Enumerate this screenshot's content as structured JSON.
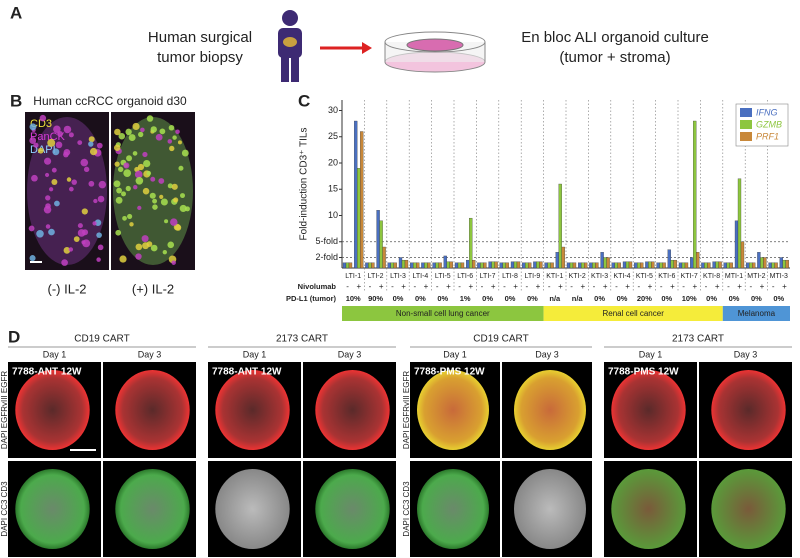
{
  "panel_a": {
    "label": "A",
    "left_text": [
      "Human surgical",
      "tumor biopsy"
    ],
    "right_text": [
      "En bloc ALI organoid culture",
      "(tumor + stroma)"
    ]
  },
  "panel_b": {
    "label": "B",
    "title": "Human ccRCC organoid d30",
    "stains": [
      {
        "name": "CD3",
        "color": "#f2e43a"
      },
      {
        "name": "PanCK",
        "color": "#d63bd6"
      },
      {
        "name": "DAPI",
        "color": "#8fd0ff"
      }
    ],
    "conditions": [
      "(-) IL-2",
      "(+) IL-2"
    ]
  },
  "chart_data": {
    "type": "bar",
    "label": "C",
    "y_label": "Fold-induction CD3⁺ TILs",
    "row_labels": [
      "Nivolumab",
      "PD-L1 (tumor)"
    ],
    "categories": [
      "-",
      "+",
      "-",
      "+",
      "-",
      "+",
      "-",
      "+",
      "-",
      "+",
      "-",
      "+",
      "-",
      "+",
      "-",
      "+",
      "-",
      "+",
      "-",
      "+",
      "-",
      "+",
      "-",
      "+",
      "-",
      "+",
      "-",
      "+",
      "-",
      "+",
      "-",
      "+",
      "-",
      "+",
      "-",
      "+",
      "-",
      "+",
      "-",
      "+"
    ],
    "groups": [
      {
        "name": "Non-small cell lung cancer",
        "color": "#8cc63f",
        "samples": [
          {
            "name": "LTI-1",
            "pdl1": "10%"
          },
          {
            "name": "LTI-2",
            "pdl1": "90%"
          },
          {
            "name": "LTI-3",
            "pdl1": "0%"
          },
          {
            "name": "LTI-4",
            "pdl1": "0%"
          },
          {
            "name": "LTI-5",
            "pdl1": "0%"
          },
          {
            "name": "LTI-6",
            "pdl1": "1%"
          },
          {
            "name": "LTI-7",
            "pdl1": "0%"
          },
          {
            "name": "LTI-8",
            "pdl1": "0%"
          },
          {
            "name": "LTI-9",
            "pdl1": "0%"
          }
        ]
      },
      {
        "name": "Renal cell cancer",
        "color": "#f5ec3a",
        "samples": [
          {
            "name": "KTI-1",
            "pdl1": "n/a"
          },
          {
            "name": "KTI-2",
            "pdl1": "n/a"
          },
          {
            "name": "KTI-3",
            "pdl1": "0%"
          },
          {
            "name": "KTI-4",
            "pdl1": "0%"
          },
          {
            "name": "KTI-5",
            "pdl1": "20%"
          },
          {
            "name": "KTI-6",
            "pdl1": "0%"
          },
          {
            "name": "KTI-7",
            "pdl1": "10%"
          },
          {
            "name": "KTI-8",
            "pdl1": "0%"
          }
        ]
      },
      {
        "name": "Melanoma",
        "color": "#4f95d6",
        "samples": [
          {
            "name": "MTI-1",
            "pdl1": "0%"
          },
          {
            "name": "MTI-2",
            "pdl1": "0%"
          },
          {
            "name": "MTI-3",
            "pdl1": "0%"
          }
        ]
      }
    ],
    "series": [
      {
        "name": "IFNG",
        "color": "#4a6fc0",
        "values": [
          1,
          28,
          1,
          11,
          1,
          2,
          1,
          1,
          1,
          2.3,
          1,
          1.5,
          1,
          1.2,
          1,
          1.2,
          1,
          1.2,
          1,
          3,
          1,
          1,
          1,
          3,
          1,
          1.2,
          1,
          1.2,
          1,
          3.5,
          1,
          2,
          1,
          1.2,
          1,
          9,
          1,
          3,
          1,
          2
        ]
      },
      {
        "name": "GZMB",
        "color": "#8dc63f",
        "values": [
          1,
          19,
          1,
          9,
          1,
          1.5,
          1,
          1,
          1,
          1.2,
          1,
          9.5,
          1,
          1.2,
          1,
          1.2,
          1,
          1.2,
          1,
          16,
          1,
          1,
          1,
          2,
          1,
          1.2,
          1,
          1.2,
          1,
          1.5,
          1,
          28,
          1,
          1.2,
          1,
          17,
          1,
          2,
          1,
          1.5
        ]
      },
      {
        "name": "PRF1",
        "color": "#c8883a",
        "values": [
          1,
          26,
          1,
          4,
          1,
          1.5,
          1,
          1,
          1,
          1.2,
          1,
          1.5,
          1,
          1.2,
          1,
          1.2,
          1,
          1.2,
          1,
          4,
          1,
          1,
          1,
          2,
          1,
          1.2,
          1,
          1.2,
          1,
          1.5,
          1,
          3,
          1,
          1.2,
          1,
          5,
          1,
          2,
          1,
          1.5
        ]
      }
    ],
    "ylim": [
      0,
      32
    ],
    "yticks": [
      {
        "value": 2,
        "label": "2-fold"
      },
      {
        "value": 5,
        "label": "5-fold"
      },
      10,
      15,
      20,
      25,
      30
    ]
  },
  "panel_d": {
    "label": "D",
    "blocks": [
      {
        "title": "CD19 CART",
        "days": [
          "Day 1",
          "Day 3"
        ],
        "sample": "7788-ANT 12W",
        "side_labels": [
          "DAPI EGFRvIII EGFR",
          "DAPI CC3 CD3"
        ]
      },
      {
        "title": "2173 CART",
        "days": [
          "Day 1",
          "Day 3"
        ],
        "sample": "7788-ANT 12W"
      },
      {
        "title": "CD19 CART",
        "days": [
          "Day 1",
          "Day 3"
        ],
        "sample": "7788-PMS 12W",
        "side_labels": [
          "DAPI EGFRvIII EGFR",
          "DAPI CC3 CD3"
        ]
      },
      {
        "title": "2173 CART",
        "days": [
          "Day 1",
          "Day 3"
        ],
        "sample": "7788-PMS 12W"
      }
    ]
  }
}
